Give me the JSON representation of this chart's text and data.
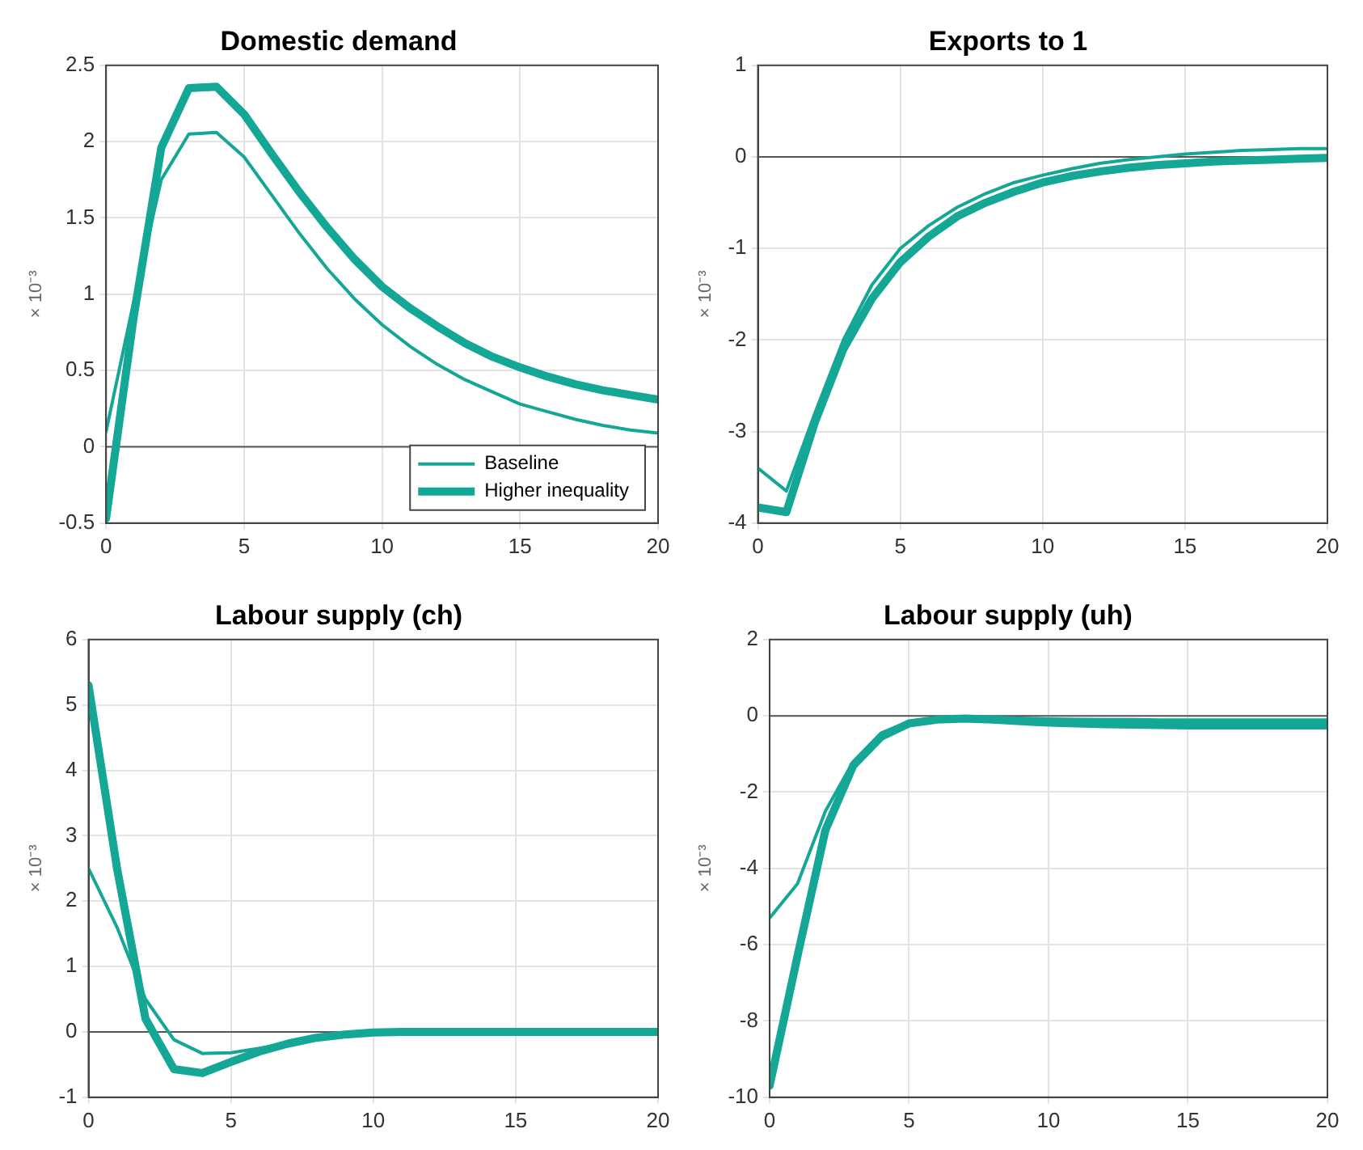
{
  "chart_data": [
    {
      "type": "line",
      "title": "Domestic demand",
      "ylabel": "× 10⁻³",
      "x": [
        0,
        1,
        2,
        3,
        4,
        5,
        6,
        7,
        8,
        9,
        10,
        11,
        12,
        13,
        14,
        15,
        16,
        17,
        18,
        19,
        20
      ],
      "xlim": [
        0,
        20
      ],
      "xticks": [
        0,
        5,
        10,
        15,
        20
      ],
      "ylim": [
        -0.5,
        2.5
      ],
      "yticks": [
        -0.5,
        0,
        0.5,
        1,
        1.5,
        2,
        2.5
      ],
      "grid": true,
      "legend": "bottom right",
      "marker": "none",
      "line_style": "solid",
      "ref_lines": [
        {
          "axis": "y",
          "value": 0,
          "color": "#555555"
        }
      ],
      "series": [
        {
          "name": "Baseline",
          "color": "#14a796",
          "values": [
            0.1,
            0.95,
            1.75,
            2.05,
            2.06,
            1.9,
            1.65,
            1.4,
            1.17,
            0.97,
            0.8,
            0.66,
            0.54,
            0.44,
            0.36,
            0.28,
            0.23,
            0.18,
            0.14,
            0.11,
            0.09
          ]
        },
        {
          "name": "Higher inequality",
          "color": "#14a796",
          "values": [
            -0.47,
            0.85,
            1.96,
            2.35,
            2.36,
            2.18,
            1.92,
            1.67,
            1.44,
            1.23,
            1.05,
            0.91,
            0.79,
            0.68,
            0.59,
            0.52,
            0.46,
            0.41,
            0.37,
            0.34,
            0.31
          ]
        }
      ]
    },
    {
      "type": "line",
      "title": "Exports to 1",
      "ylabel": "× 10⁻³",
      "x": [
        0,
        1,
        2,
        3,
        4,
        5,
        6,
        7,
        8,
        9,
        10,
        11,
        12,
        13,
        14,
        15,
        16,
        17,
        18,
        19,
        20
      ],
      "xlim": [
        0,
        20
      ],
      "xticks": [
        0,
        5,
        10,
        15,
        20
      ],
      "ylim": [
        -4,
        1
      ],
      "yticks": [
        -4,
        -3,
        -2,
        -1,
        0,
        1
      ],
      "grid": true,
      "legend": false,
      "marker": "none",
      "line_style": "solid",
      "ref_lines": [
        {
          "axis": "y",
          "value": 0,
          "color": "#555555"
        }
      ],
      "series": [
        {
          "color": "#14a796",
          "values": [
            -3.4,
            -3.65,
            -2.8,
            -2.0,
            -1.4,
            -1.0,
            -0.75,
            -0.55,
            -0.4,
            -0.28,
            -0.2,
            -0.13,
            -0.07,
            -0.03,
            0.0,
            0.03,
            0.05,
            0.07,
            0.08,
            0.09,
            0.09
          ]
        },
        {
          "color": "#14a796",
          "values": [
            -3.83,
            -3.88,
            -2.9,
            -2.1,
            -1.55,
            -1.15,
            -0.87,
            -0.65,
            -0.5,
            -0.38,
            -0.28,
            -0.21,
            -0.16,
            -0.12,
            -0.09,
            -0.07,
            -0.05,
            -0.04,
            -0.03,
            -0.02,
            -0.01
          ]
        }
      ]
    },
    {
      "type": "line",
      "title": "Labour supply (ch)",
      "ylabel": "× 10⁻³",
      "x": [
        0,
        1,
        2,
        3,
        4,
        5,
        6,
        7,
        8,
        9,
        10,
        11,
        12,
        13,
        14,
        15,
        16,
        17,
        18,
        19,
        20
      ],
      "xlim": [
        0,
        20
      ],
      "xticks": [
        0,
        5,
        10,
        15,
        20
      ],
      "ylim": [
        -1,
        6
      ],
      "yticks": [
        -1,
        0,
        1,
        2,
        3,
        4,
        5,
        6
      ],
      "grid": true,
      "legend": false,
      "marker": "none",
      "line_style": "solid",
      "ref_lines": [
        {
          "axis": "y",
          "value": 0,
          "color": "#555555"
        }
      ],
      "series": [
        {
          "color": "#14a796",
          "values": [
            2.5,
            1.6,
            0.5,
            -0.12,
            -0.33,
            -0.32,
            -0.25,
            -0.17,
            -0.1,
            -0.05,
            -0.03,
            -0.02,
            -0.01,
            0,
            0,
            0,
            0,
            0,
            0,
            0,
            0
          ]
        },
        {
          "color": "#14a796",
          "values": [
            5.3,
            2.5,
            0.2,
            -0.57,
            -0.63,
            -0.46,
            -0.3,
            -0.18,
            -0.09,
            -0.04,
            -0.01,
            0,
            0,
            0,
            0,
            0,
            0,
            0,
            0,
            0,
            0
          ]
        }
      ]
    },
    {
      "type": "line",
      "title": "Labour supply (uh)",
      "ylabel": "× 10⁻³",
      "x": [
        0,
        1,
        2,
        3,
        4,
        5,
        6,
        7,
        8,
        9,
        10,
        11,
        12,
        13,
        14,
        15,
        16,
        17,
        18,
        19,
        20
      ],
      "xlim": [
        0,
        20
      ],
      "xticks": [
        0,
        5,
        10,
        15,
        20
      ],
      "ylim": [
        -10,
        2
      ],
      "yticks": [
        -10,
        -8,
        -6,
        -4,
        -2,
        0,
        2
      ],
      "grid": true,
      "legend": false,
      "marker": "none",
      "line_style": "solid",
      "ref_lines": [
        {
          "axis": "y",
          "value": 0,
          "color": "#555555"
        }
      ],
      "series": [
        {
          "color": "#14a796",
          "values": [
            -5.3,
            -4.4,
            -2.5,
            -1.2,
            -0.45,
            -0.15,
            -0.06,
            -0.03,
            -0.04,
            -0.06,
            -0.08,
            -0.09,
            -0.1,
            -0.1,
            -0.11,
            -0.11,
            -0.11,
            -0.11,
            -0.11,
            -0.11,
            -0.11
          ]
        },
        {
          "color": "#14a796",
          "values": [
            -9.7,
            -6.3,
            -3.0,
            -1.3,
            -0.55,
            -0.2,
            -0.1,
            -0.07,
            -0.1,
            -0.14,
            -0.18,
            -0.2,
            -0.22,
            -0.23,
            -0.24,
            -0.25,
            -0.25,
            -0.25,
            -0.25,
            -0.25,
            -0.25
          ]
        }
      ]
    }
  ]
}
